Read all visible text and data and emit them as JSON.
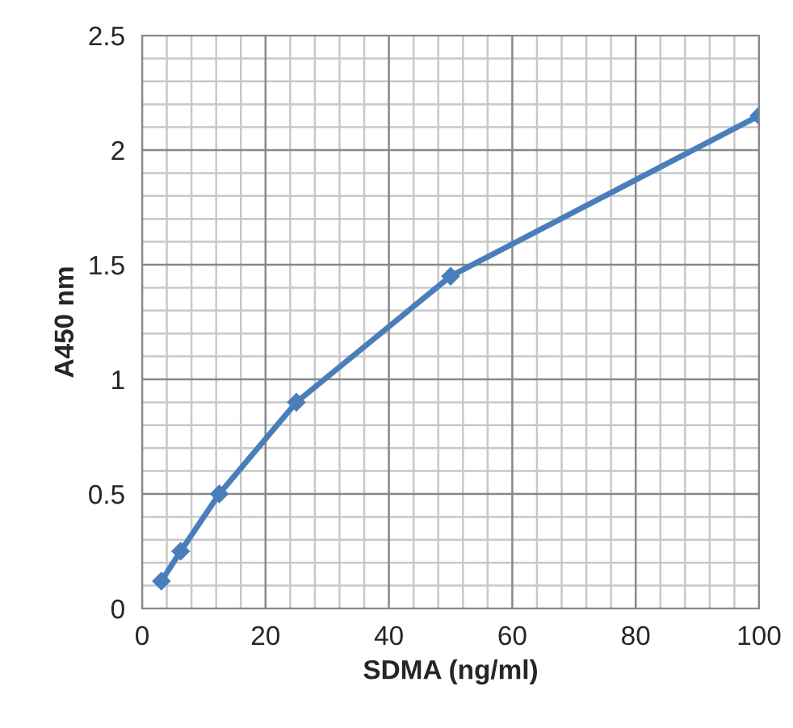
{
  "chart_data": {
    "type": "line",
    "xlabel": "SDMA (ng/ml)",
    "ylabel": "A450 nm",
    "x": [
      3.125,
      6.25,
      12.5,
      25,
      50,
      100
    ],
    "series": [
      {
        "color": "#4a7ebb",
        "values": [
          0.12,
          0.25,
          0.5,
          0.9,
          1.45,
          2.15
        ]
      }
    ],
    "xlim": [
      0,
      100
    ],
    "xticks": [
      0,
      20,
      40,
      60,
      80,
      100
    ],
    "ylim": [
      0,
      2.5
    ],
    "yticks": [
      0,
      0.5,
      1,
      1.5,
      2,
      2.5
    ],
    "grid": true,
    "marker": "diamond",
    "line_style": "solid",
    "legend": false
  }
}
